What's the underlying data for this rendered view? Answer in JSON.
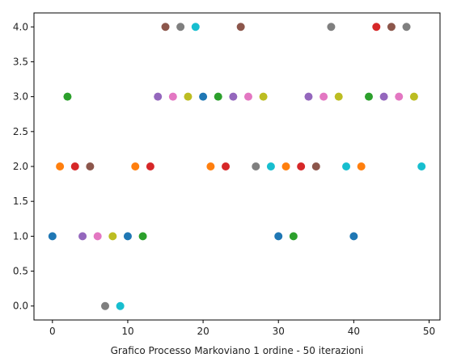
{
  "chart_data": {
    "type": "scatter",
    "title": "",
    "xlabel": "Grafico Processo Markoviano 1 ordine - 50 iterazioni",
    "ylabel": "",
    "xlim": [
      -2.45,
      51.45
    ],
    "ylim": [
      -0.2,
      4.2
    ],
    "xticks": [
      0,
      10,
      20,
      30,
      40,
      50
    ],
    "xtick_labels": [
      "0",
      "10",
      "20",
      "30",
      "40",
      "50"
    ],
    "yticks": [
      0.0,
      0.5,
      1.0,
      1.5,
      2.0,
      2.5,
      3.0,
      3.5,
      4.0
    ],
    "ytick_labels": [
      "0.0",
      "0.5",
      "1.0",
      "1.5",
      "2.0",
      "2.5",
      "3.0",
      "3.5",
      "4.0"
    ],
    "grid": false,
    "legend": "none",
    "palette": [
      "#1f77b4",
      "#ff7f0e",
      "#2ca02c",
      "#d62728",
      "#9467bd",
      "#8c564b",
      "#e377c2",
      "#7f7f7f",
      "#bcbd22",
      "#17becf"
    ],
    "x": [
      0,
      1,
      2,
      3,
      4,
      5,
      6,
      7,
      8,
      9,
      10,
      11,
      12,
      13,
      14,
      15,
      16,
      17,
      18,
      19,
      20,
      21,
      22,
      23,
      24,
      25,
      26,
      27,
      28,
      29,
      30,
      31,
      32,
      33,
      34,
      35,
      36,
      37,
      38,
      39,
      40,
      41,
      42,
      43,
      44,
      45,
      46,
      47,
      48,
      49
    ],
    "y": [
      1,
      2,
      3,
      2,
      1,
      2,
      1,
      0,
      1,
      0,
      1,
      2,
      1,
      2,
      3,
      4,
      3,
      4,
      3,
      4,
      3,
      2,
      3,
      2,
      3,
      4,
      3,
      2,
      3,
      2,
      1,
      2,
      1,
      2,
      3,
      2,
      3,
      4,
      3,
      2,
      1,
      2,
      3,
      4,
      3,
      4,
      3,
      4,
      3,
      2
    ]
  }
}
